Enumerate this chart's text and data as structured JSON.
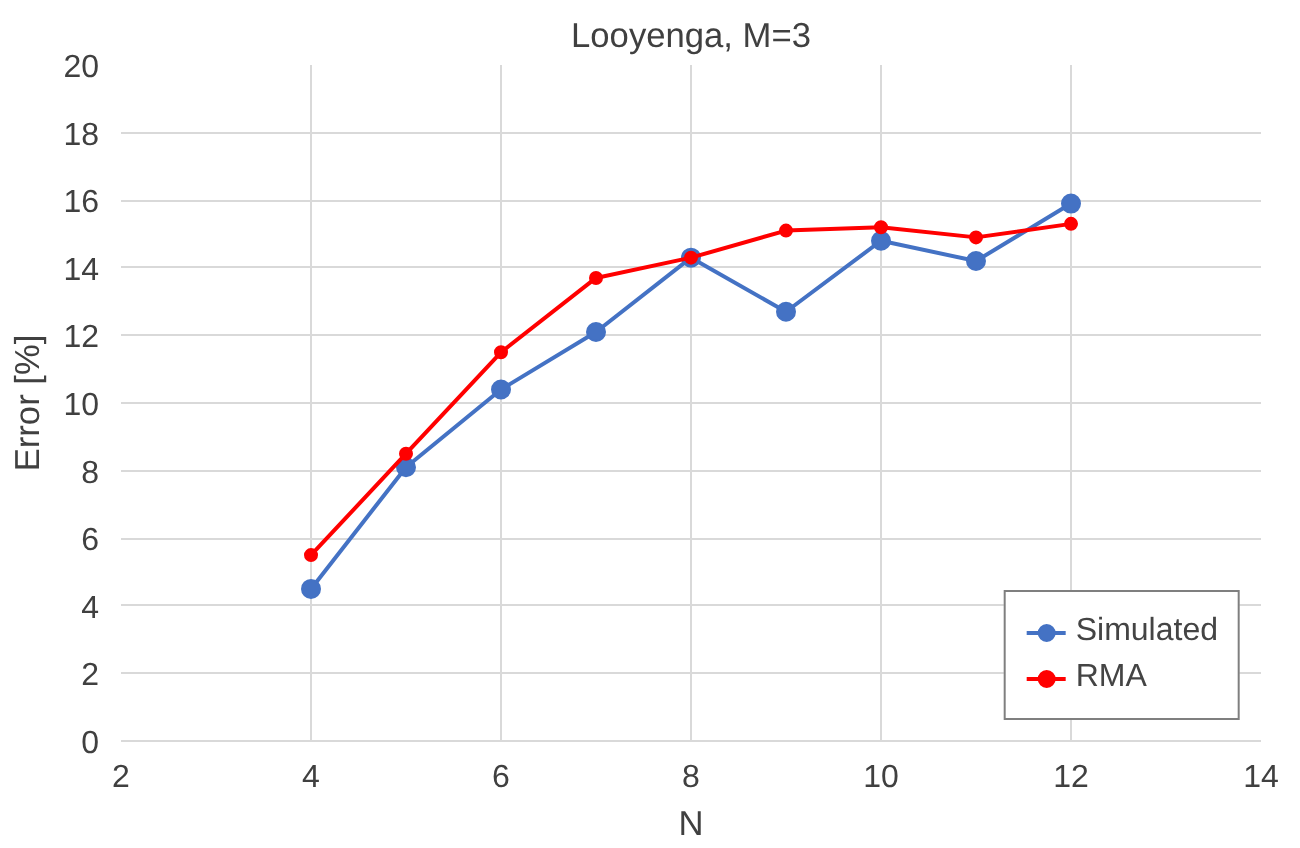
{
  "chart_data": {
    "type": "line",
    "title": "Looyenga, M=3",
    "xlabel": "N",
    "ylabel": "Error [%]",
    "x": [
      4,
      5,
      6,
      7,
      8,
      9,
      10,
      11,
      12
    ],
    "series": [
      {
        "name": "Simulated",
        "color": "#4472c4",
        "values": [
          4.5,
          8.1,
          10.4,
          12.1,
          14.3,
          12.7,
          14.8,
          14.2,
          15.9
        ]
      },
      {
        "name": "RMA",
        "color": "#ff0000",
        "values": [
          5.5,
          8.5,
          11.5,
          13.7,
          14.3,
          15.1,
          15.2,
          14.9,
          15.3
        ]
      }
    ],
    "xlim": [
      2,
      14
    ],
    "xticks": [
      2,
      4,
      6,
      8,
      10,
      12,
      14
    ],
    "ylim": [
      0,
      20
    ],
    "yticks": [
      0,
      2,
      4,
      6,
      8,
      10,
      12,
      14,
      16,
      18,
      20
    ],
    "grid": true,
    "legend": "bottom right",
    "marker": "circle",
    "line_style": "solid"
  }
}
